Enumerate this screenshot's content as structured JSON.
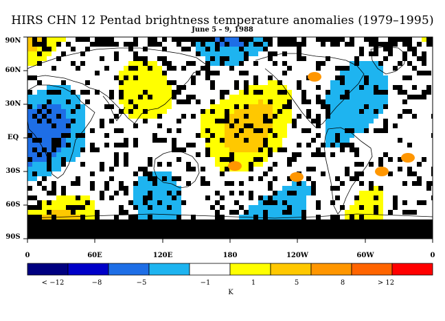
{
  "title": "HIRS CHN 12 Pentad brightness temperature anomalies (1979–1995)",
  "subtitle": "June 5 – 9, 1988",
  "lat_labels": [
    "90N",
    "60N",
    "30N",
    "EQ",
    "30S",
    "60S",
    "90S"
  ],
  "lon_labels": [
    "0",
    "60E",
    "120E",
    "180",
    "120W",
    "60W",
    "0"
  ],
  "colorbar": {
    "colors": [
      "#000080",
      "#0000c8",
      "#1e6ee6",
      "#1eb4f0",
      "#ffffff",
      "#ffff00",
      "#ffc800",
      "#ff9600",
      "#ff6400",
      "#ff0000"
    ],
    "labels": [
      "< −12",
      "−8",
      "−5",
      "−1",
      "1",
      "5",
      "8",
      "> 12"
    ],
    "unit": "K"
  },
  "map_colors": {
    "missing": "#000000",
    "cold_strong": "#1e6ee6",
    "cold": "#1eb4f0",
    "neutral": "#ffffff",
    "warm": "#ffff00",
    "warmer": "#ffc800",
    "hot": "#ff9600",
    "coast": "#000000"
  }
}
